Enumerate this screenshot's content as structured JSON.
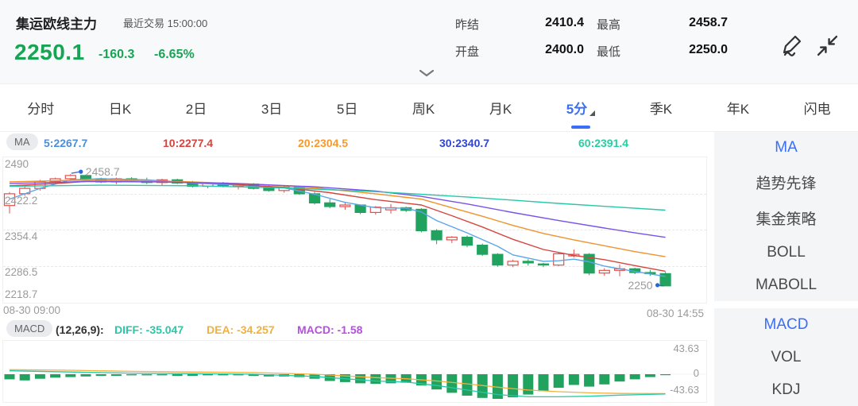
{
  "header": {
    "title": "集运欧线主力",
    "last_trade": "最近交易 15:00:00",
    "price": "2250.1",
    "change": "-160.3",
    "change_pct": "-6.65%",
    "price_color": "#17a554",
    "quotes": [
      {
        "label": "昨结",
        "value": "2410.4"
      },
      {
        "label": "最高",
        "value": "2458.7"
      },
      {
        "label": "开盘",
        "value": "2400.0"
      },
      {
        "label": "最低",
        "value": "2250.0"
      }
    ]
  },
  "tabs": {
    "items": [
      {
        "label": "分时"
      },
      {
        "label": "日K"
      },
      {
        "label": "2日"
      },
      {
        "label": "3日"
      },
      {
        "label": "5日"
      },
      {
        "label": "周K"
      },
      {
        "label": "月K"
      },
      {
        "label": "5分",
        "active": true
      },
      {
        "label": "季K"
      },
      {
        "label": "年K"
      },
      {
        "label": "闪电"
      }
    ],
    "active_color": "#3b6ef6"
  },
  "ma_bar": {
    "badge": "MA",
    "items": [
      {
        "label": "5:2267.7",
        "color": "#4a90d9"
      },
      {
        "label": "10:2277.4",
        "color": "#d5453f"
      },
      {
        "label": "20:2304.5",
        "color": "#f59a2e"
      },
      {
        "label": "30:2340.7",
        "color": "#2f45d0"
      },
      {
        "label": "60:2391.4",
        "color": "#27cfa0"
      }
    ]
  },
  "macd_bar": {
    "badge": "MACD",
    "params": "(12,26,9):",
    "items": [
      {
        "label": "DIFF: -35.047",
        "color": "#26c9a8"
      },
      {
        "label": "DEA: -34.257",
        "color": "#f3b03e"
      },
      {
        "label": "MACD: -1.58",
        "color": "#b54fe0"
      }
    ]
  },
  "sidebar": {
    "groups": [
      {
        "items": [
          {
            "label": "MA",
            "active": true
          },
          {
            "label": "趋势先锋"
          },
          {
            "label": "集金策略"
          },
          {
            "label": "BOLL"
          },
          {
            "label": "MABOLL"
          }
        ]
      },
      {
        "items": [
          {
            "label": "MACD",
            "active": true
          },
          {
            "label": "VOL"
          },
          {
            "label": "KDJ"
          }
        ]
      }
    ]
  },
  "chart_data": {
    "type": "candlestick+macd",
    "kline": {
      "ymax": 2490,
      "ymin": 2218.7,
      "y_ticks": [
        "2490",
        "2422.2",
        "2354.4",
        "2286.5",
        "2218.7"
      ],
      "x_labels": [
        "08-30 09:00",
        "08-30 14:55"
      ],
      "high_marker": {
        "bar": 4,
        "price": 2458.7,
        "text": "2458.7"
      },
      "low_marker": {
        "bar": 43,
        "price": 2250.0,
        "text": "2250"
      },
      "colors": {
        "up": "#e0514c",
        "down": "#21a35f",
        "marker_dot": "#2f62d9",
        "marker_text": "#9b9b9b"
      },
      "candles": [
        [
          2400,
          2425,
          2385,
          2422
        ],
        [
          2422,
          2436,
          2418,
          2432
        ],
        [
          2432,
          2448,
          2428,
          2445
        ],
        [
          2445,
          2452,
          2440,
          2450
        ],
        [
          2450,
          2458.7,
          2446,
          2456
        ],
        [
          2456,
          2458,
          2448,
          2450
        ],
        [
          2450,
          2452,
          2442,
          2444
        ],
        [
          2444,
          2452,
          2440,
          2450
        ],
        [
          2450,
          2453,
          2444,
          2446
        ],
        [
          2446,
          2452,
          2440,
          2443
        ],
        [
          2443,
          2450,
          2438,
          2448
        ],
        [
          2448,
          2450,
          2440,
          2442
        ],
        [
          2442,
          2446,
          2434,
          2436
        ],
        [
          2436,
          2444,
          2432,
          2442
        ],
        [
          2442,
          2444,
          2434,
          2436
        ],
        [
          2436,
          2442,
          2430,
          2440
        ],
        [
          2440,
          2442,
          2430,
          2432
        ],
        [
          2432,
          2438,
          2426,
          2428
        ],
        [
          2428,
          2436,
          2424,
          2434
        ],
        [
          2434,
          2436,
          2420,
          2422
        ],
        [
          2422,
          2426,
          2402,
          2405
        ],
        [
          2405,
          2412,
          2395,
          2398
        ],
        [
          2398,
          2406,
          2392,
          2401
        ],
        [
          2401,
          2402,
          2384,
          2387
        ],
        [
          2387,
          2399,
          2383,
          2397
        ],
        [
          2392,
          2403,
          2385,
          2396
        ],
        [
          2396,
          2398,
          2388,
          2391
        ],
        [
          2393,
          2395,
          2350,
          2353
        ],
        [
          2353,
          2356,
          2328,
          2336
        ],
        [
          2336,
          2343,
          2330,
          2341
        ],
        [
          2341,
          2344,
          2322,
          2326
        ],
        [
          2326,
          2329,
          2306,
          2309
        ],
        [
          2309,
          2311,
          2286,
          2289
        ],
        [
          2289,
          2299,
          2285,
          2296
        ],
        [
          2296,
          2300,
          2288,
          2293
        ],
        [
          2291,
          2293,
          2285,
          2289
        ],
        [
          2289,
          2313,
          2287,
          2310
        ],
        [
          2306,
          2318,
          2303,
          2309
        ],
        [
          2309,
          2311,
          2270,
          2274
        ],
        [
          2274,
          2283,
          2269,
          2279
        ],
        [
          2279,
          2290,
          2268,
          2282
        ],
        [
          2282,
          2284,
          2272,
          2275
        ],
        [
          2275,
          2280,
          2269,
          2273
        ],
        [
          2273,
          2276,
          2250,
          2250.1
        ]
      ],
      "ma_series": [
        {
          "name": "MA5",
          "color": "#5aa6e8",
          "points": [
            [
              0,
              2412
            ],
            [
              2,
              2432
            ],
            [
              4,
              2448
            ],
            [
              6,
              2450
            ],
            [
              9,
              2448
            ],
            [
              12,
              2442
            ],
            [
              15,
              2438
            ],
            [
              18,
              2433
            ],
            [
              20,
              2421
            ],
            [
              22,
              2406
            ],
            [
              24,
              2396
            ],
            [
              26,
              2395
            ],
            [
              27,
              2388
            ],
            [
              28,
              2372
            ],
            [
              30,
              2349
            ],
            [
              32,
              2324
            ],
            [
              33,
              2308
            ],
            [
              35,
              2296
            ],
            [
              36,
              2297
            ],
            [
              37,
              2300
            ],
            [
              38,
              2295
            ],
            [
              39,
              2287
            ],
            [
              41,
              2277
            ],
            [
              43,
              2267.7
            ]
          ]
        },
        {
          "name": "MA10",
          "color": "#d5453f",
          "points": [
            [
              0,
              2437
            ],
            [
              3,
              2441
            ],
            [
              6,
              2447
            ],
            [
              10,
              2446
            ],
            [
              14,
              2441
            ],
            [
              18,
              2434
            ],
            [
              21,
              2424
            ],
            [
              24,
              2411
            ],
            [
              27,
              2401
            ],
            [
              29,
              2381
            ],
            [
              31,
              2360
            ],
            [
              33,
              2337
            ],
            [
              35,
              2318
            ],
            [
              37,
              2307
            ],
            [
              39,
              2299
            ],
            [
              41,
              2288
            ],
            [
              43,
              2277.4
            ]
          ]
        },
        {
          "name": "MA20",
          "color": "#f0922e",
          "points": [
            [
              0,
              2444
            ],
            [
              4,
              2447
            ],
            [
              8,
              2447
            ],
            [
              12,
              2444
            ],
            [
              16,
              2440
            ],
            [
              20,
              2433
            ],
            [
              24,
              2422
            ],
            [
              27,
              2412
            ],
            [
              29,
              2396
            ],
            [
              31,
              2380
            ],
            [
              33,
              2363
            ],
            [
              35,
              2348
            ],
            [
              37,
              2336
            ],
            [
              39,
              2325
            ],
            [
              41,
              2314
            ],
            [
              43,
              2304.5
            ]
          ]
        },
        {
          "name": "MA30",
          "color": "#7a52e8",
          "points": [
            [
              0,
              2441
            ],
            [
              5,
              2445
            ],
            [
              10,
              2444
            ],
            [
              15,
              2441
            ],
            [
              20,
              2435
            ],
            [
              24,
              2427
            ],
            [
              27,
              2417
            ],
            [
              30,
              2403
            ],
            [
              33,
              2387
            ],
            [
              36,
              2372
            ],
            [
              39,
              2358
            ],
            [
              41,
              2349
            ],
            [
              43,
              2340.7
            ]
          ]
        },
        {
          "name": "MA60",
          "color": "#28c7a8",
          "points": [
            [
              0,
              2436
            ],
            [
              6,
              2438
            ],
            [
              12,
              2437
            ],
            [
              18,
              2433
            ],
            [
              24,
              2426
            ],
            [
              30,
              2416
            ],
            [
              36,
              2404
            ],
            [
              43,
              2391.4
            ]
          ]
        }
      ]
    },
    "macd": {
      "ylim": 43.63,
      "y_ticks": [
        "43.63",
        "0",
        "-43.63"
      ],
      "hist_color": "#21a35f",
      "histogram": [
        -9,
        -11,
        -8,
        -6,
        -5,
        -4,
        -3,
        -3,
        -2,
        -2,
        -2,
        -3,
        -3,
        -2,
        -2,
        -2,
        -3,
        -4,
        -4,
        -5,
        -8,
        -12,
        -14,
        -16,
        -17,
        -16,
        -15,
        -20,
        -27,
        -33,
        -38,
        -42,
        -43.6,
        -41,
        -36,
        -30,
        -24,
        -19,
        -22,
        -18,
        -13,
        -9,
        -5,
        -1.58
      ],
      "diff": {
        "color": "#26c9a8",
        "points": [
          [
            0,
            6
          ],
          [
            4,
            4
          ],
          [
            8,
            2
          ],
          [
            12,
            1
          ],
          [
            16,
            0
          ],
          [
            20,
            -4
          ],
          [
            22,
            -8
          ],
          [
            24,
            -12
          ],
          [
            26,
            -14
          ],
          [
            28,
            -20
          ],
          [
            30,
            -28
          ],
          [
            32,
            -36
          ],
          [
            34,
            -40
          ],
          [
            36,
            -40
          ],
          [
            38,
            -39
          ],
          [
            40,
            -37
          ],
          [
            43,
            -35.0
          ]
        ]
      },
      "dea": {
        "color": "#f3b03e",
        "points": [
          [
            0,
            8
          ],
          [
            4,
            7
          ],
          [
            8,
            5
          ],
          [
            12,
            4
          ],
          [
            16,
            3
          ],
          [
            20,
            0
          ],
          [
            22,
            -3
          ],
          [
            24,
            -6
          ],
          [
            26,
            -8
          ],
          [
            28,
            -12
          ],
          [
            30,
            -17
          ],
          [
            32,
            -23
          ],
          [
            34,
            -28
          ],
          [
            36,
            -31
          ],
          [
            38,
            -33
          ],
          [
            40,
            -34
          ],
          [
            43,
            -34.3
          ]
        ]
      }
    }
  }
}
